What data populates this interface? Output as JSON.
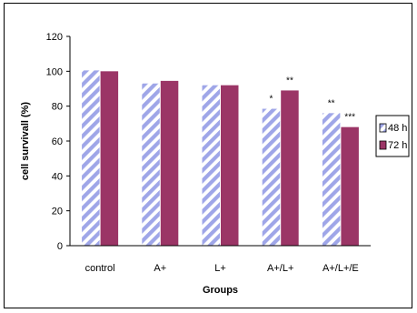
{
  "chart_data": {
    "type": "bar",
    "xlabel": "Groups",
    "ylabel": "cell survivall (%)",
    "ylim": [
      0,
      120
    ],
    "yticks": [
      0,
      20,
      40,
      60,
      80,
      100,
      120
    ],
    "categories": [
      "control",
      "A+",
      "L+",
      "A+/L+",
      "A+/L+/E"
    ],
    "series": [
      {
        "name": "48 h",
        "values": [
          100.5,
          93,
          92,
          78.5,
          76
        ],
        "annotations": [
          "",
          "",
          "",
          "*",
          "**"
        ],
        "color": "#9fa6e8",
        "pattern": "diagonal-stripes"
      },
      {
        "name": "72 h",
        "values": [
          100,
          94.5,
          92,
          89,
          68
        ],
        "annotations": [
          "",
          "",
          "",
          "**",
          "***"
        ],
        "color": "#9b3566",
        "pattern": "solid"
      }
    ],
    "grid": false,
    "legend_position": "right"
  }
}
